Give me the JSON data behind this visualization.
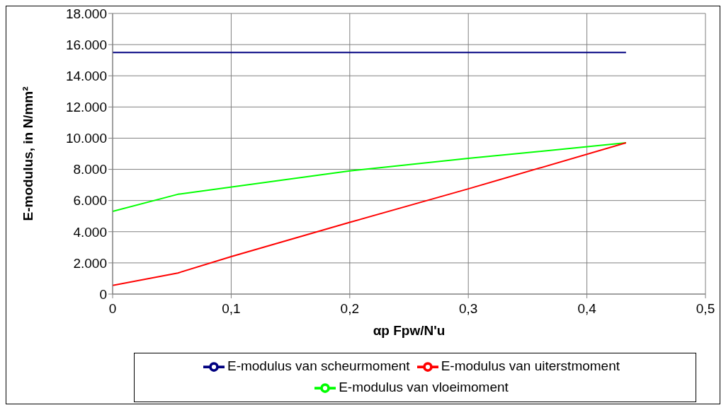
{
  "chart_data": {
    "type": "line",
    "xlabel": "αp Fpw/N'u",
    "ylabel": "E-modulus, in N/mm²",
    "xlim": [
      0,
      0.5
    ],
    "xticks": [
      {
        "value": 0,
        "label": "0"
      },
      {
        "value": 0.1,
        "label": "0,1"
      },
      {
        "value": 0.2,
        "label": "0,2"
      },
      {
        "value": 0.3,
        "label": "0,3"
      },
      {
        "value": 0.4,
        "label": "0,4"
      },
      {
        "value": 0.5,
        "label": "0,5"
      }
    ],
    "ylim": [
      0,
      18000
    ],
    "yticks": [
      {
        "value": 0,
        "label": "0"
      },
      {
        "value": 2000,
        "label": "2.000"
      },
      {
        "value": 4000,
        "label": "4.000"
      },
      {
        "value": 6000,
        "label": "6.000"
      },
      {
        "value": 8000,
        "label": "8.000"
      },
      {
        "value": 10000,
        "label": "10.000"
      },
      {
        "value": 12000,
        "label": "12.000"
      },
      {
        "value": 14000,
        "label": "14.000"
      },
      {
        "value": 16000,
        "label": "16.000"
      },
      {
        "value": 18000,
        "label": "18.000"
      }
    ],
    "grid": true,
    "legend": "bottom",
    "marker": "none",
    "line_style": "solid",
    "series": [
      {
        "name": "E-modulus van scheurmoment",
        "color": "#000080",
        "x": [
          0,
          0.433
        ],
        "values": [
          15500,
          15500
        ]
      },
      {
        "name": "E-modulus van vloeimoment",
        "color": "#00ff00",
        "x": [
          0,
          0.055,
          0.2,
          0.3,
          0.433
        ],
        "values": [
          5300,
          6400,
          7900,
          8700,
          9700
        ]
      },
      {
        "name": "E-modulus van uiterstmoment",
        "color": "#ff0000",
        "x": [
          0,
          0.055,
          0.1,
          0.2,
          0.3,
          0.433
        ],
        "values": [
          550,
          1350,
          2400,
          4600,
          6750,
          9700
        ]
      }
    ]
  }
}
